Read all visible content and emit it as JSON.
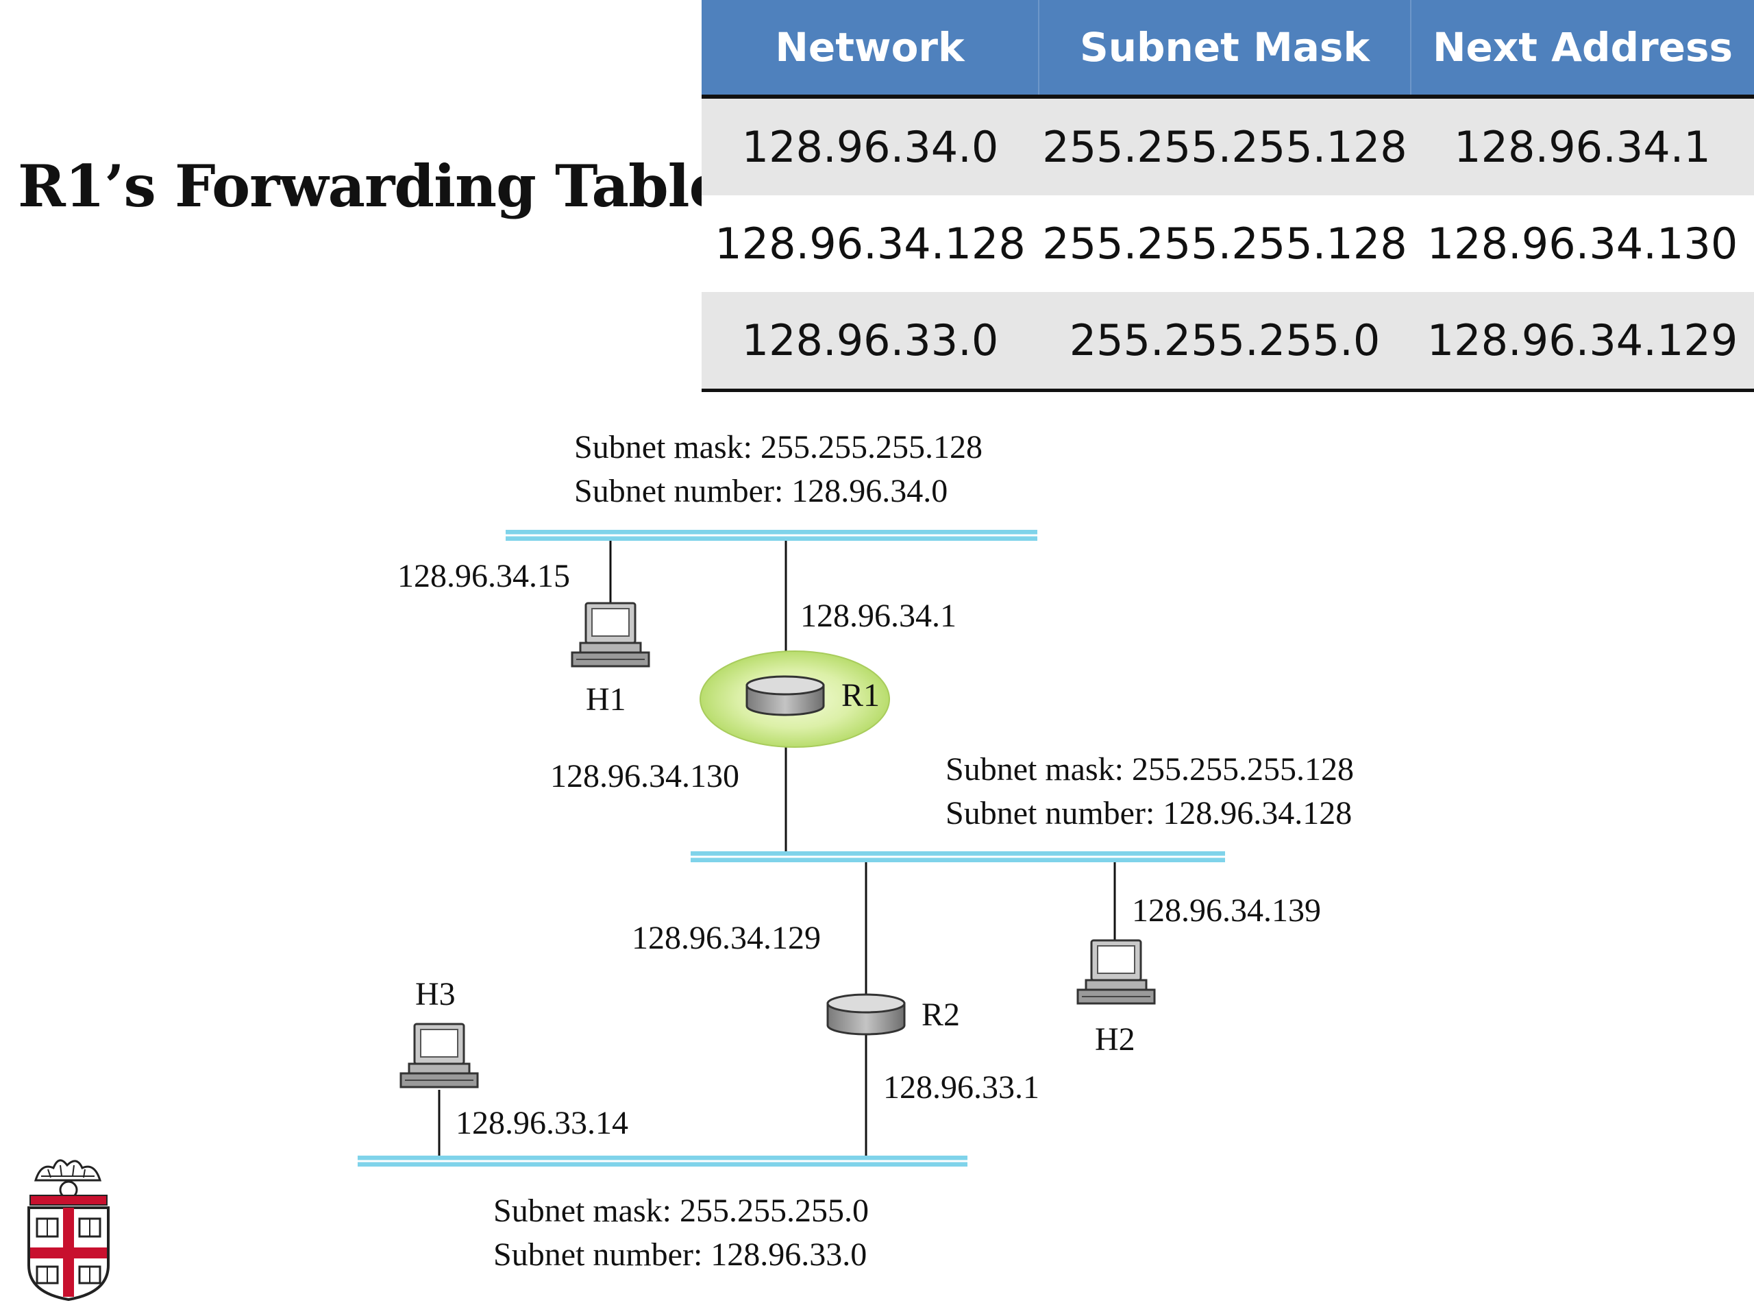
{
  "title": "R1’s Forwarding Table",
  "table": {
    "headers": [
      "Network",
      "Subnet Mask",
      "Next Address"
    ],
    "rows": [
      [
        "128.96.34.0",
        "255.255.255.128",
        "128.96.34.1"
      ],
      [
        "128.96.34.128",
        "255.255.255.128",
        "128.96.34.130"
      ],
      [
        "128.96.33.0",
        "255.255.255.0",
        "128.96.34.129"
      ]
    ]
  },
  "diagram": {
    "subnets": {
      "top": {
        "mask": "Subnet mask: 255.255.255.128",
        "number": "Subnet number: 128.96.34.0"
      },
      "middle": {
        "mask": "Subnet mask: 255.255.255.128",
        "number": "Subnet number: 128.96.34.128"
      },
      "bottom": {
        "mask": "Subnet mask: 255.255.255.0",
        "number": "Subnet number: 128.96.33.0"
      }
    },
    "hosts": {
      "h1": "H1",
      "h2": "H2",
      "h3": "H3"
    },
    "routers": {
      "r1": "R1",
      "r2": "R2"
    },
    "addresses": {
      "h1": "128.96.34.15",
      "r1_top": "128.96.34.1",
      "r1_bottom": "128.96.34.130",
      "r2_top": "128.96.34.129",
      "h2": "128.96.34.139",
      "r2_bottom": "128.96.33.1",
      "h3": "128.96.33.14"
    },
    "colors": {
      "network_line": "#7fd3ea",
      "router_highlight": "#d4ec9c"
    }
  }
}
